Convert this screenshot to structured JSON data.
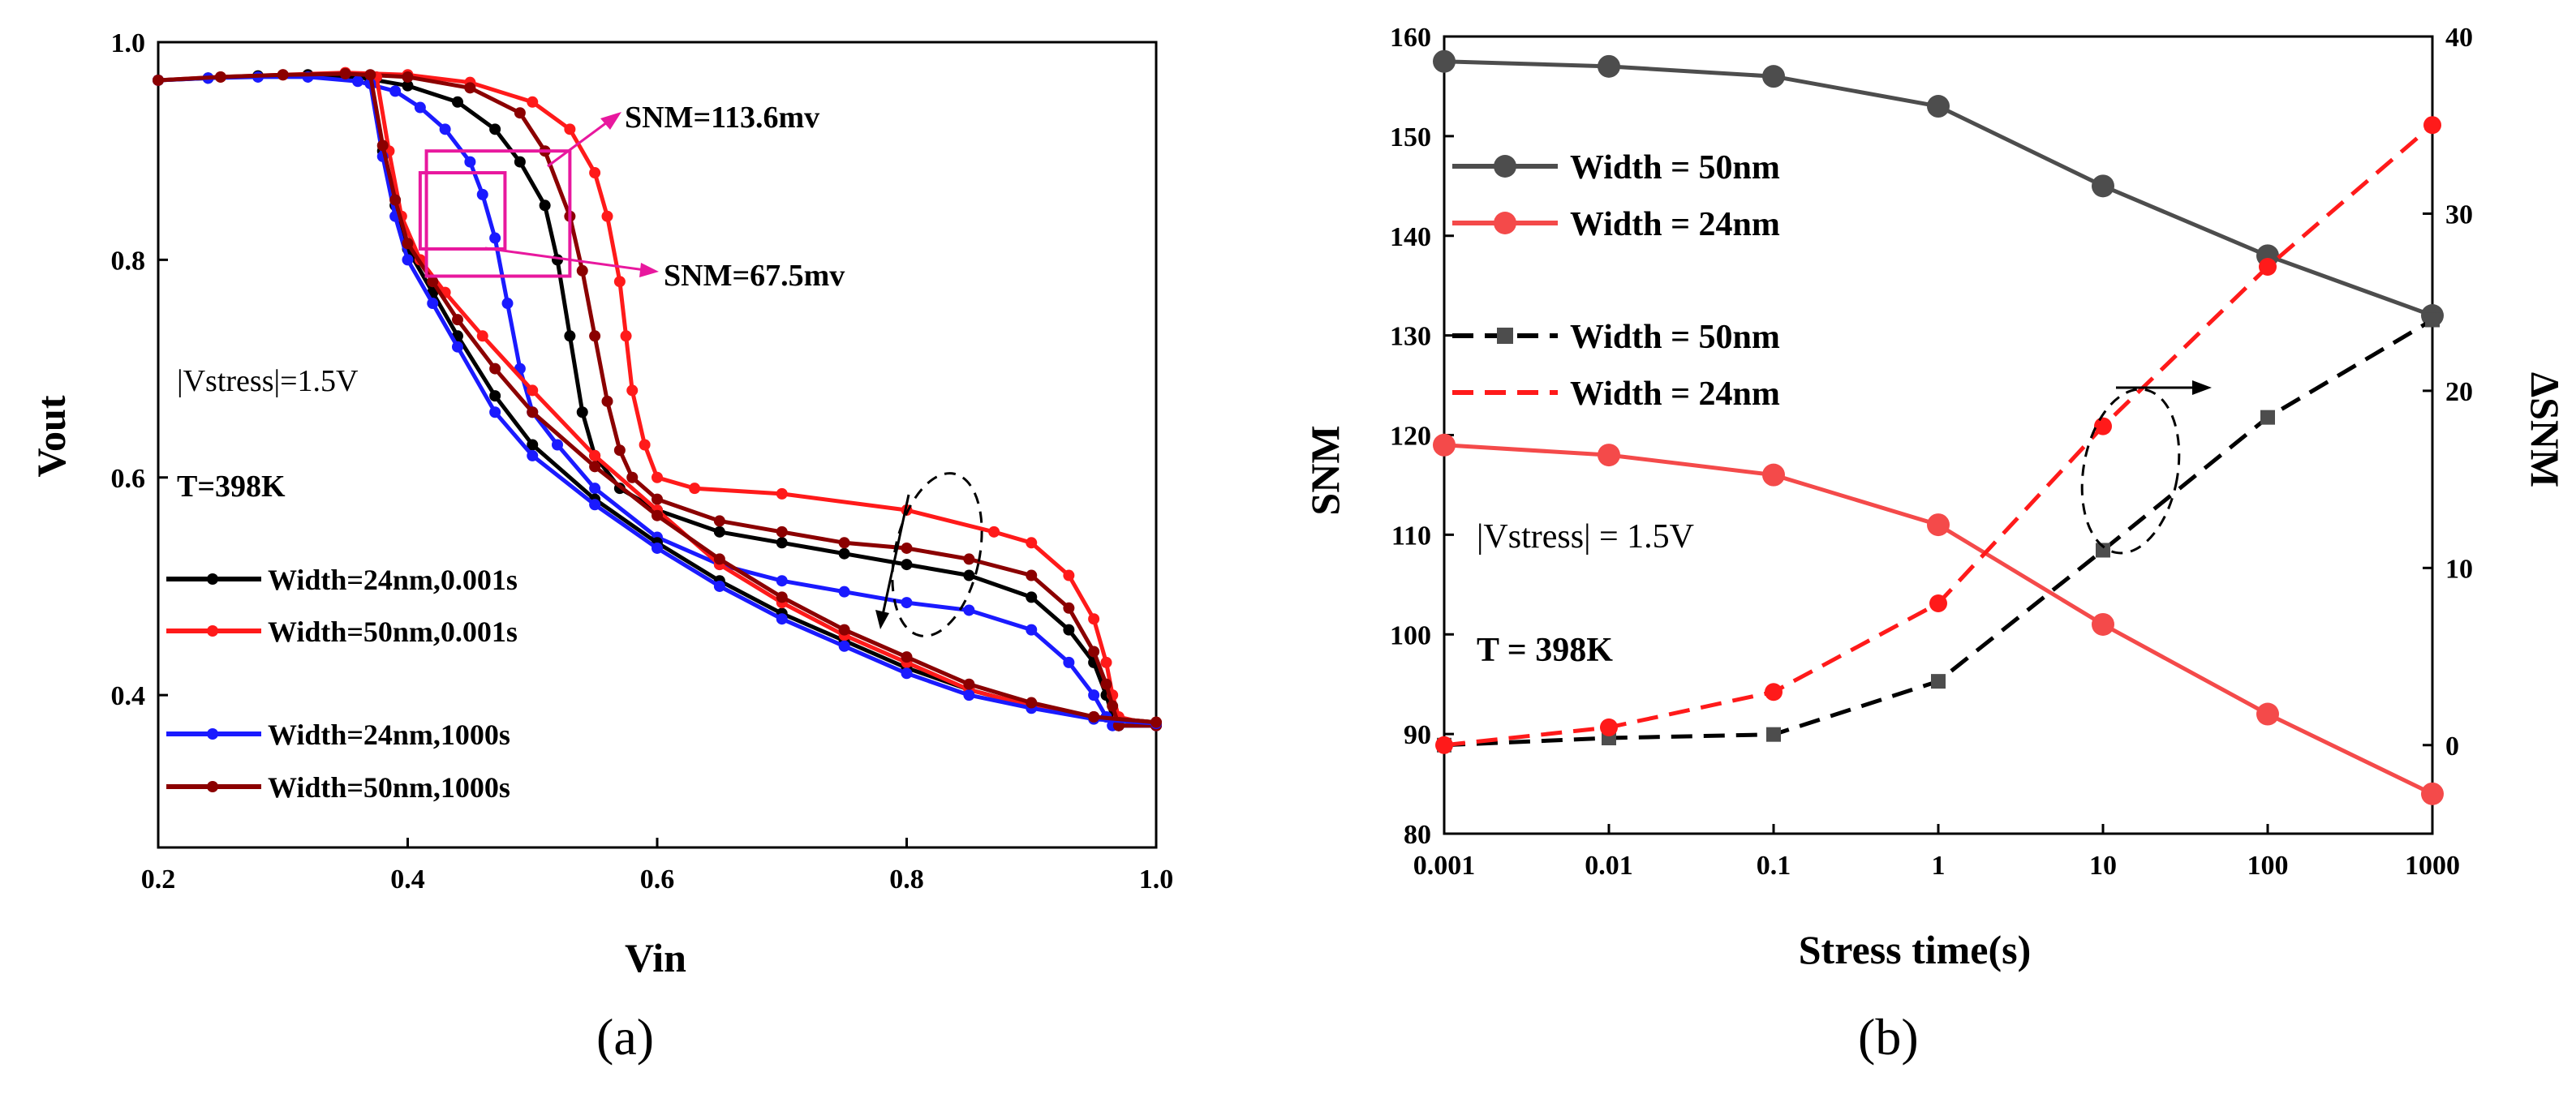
{
  "chart_data": [
    {
      "panel": "(a)",
      "type": "line",
      "xlabel": "Vin",
      "ylabel": "Vout",
      "xlim": [
        0.2,
        1.0
      ],
      "ylim": [
        0.26,
        1.0
      ],
      "xticks": [
        "0.2",
        "0.4",
        "0.6",
        "0.8",
        "1.0"
      ],
      "xtick_values": [
        0.2,
        0.4,
        0.6,
        0.8,
        1.0
      ],
      "yticks": [
        "0.4",
        "0.6",
        "0.8",
        "1.0"
      ],
      "ytick_values": [
        0.4,
        0.6,
        0.8,
        1.0
      ],
      "annotations": [
        "SNM=113.6mv",
        "SNM=67.5mv",
        "|Vstress|=1.5V",
        "T=398K"
      ],
      "legend_position": "bottom-left",
      "series": [
        {
          "name": "Width=24nm,0.001s",
          "color": "#000000",
          "x": [
            0.2,
            0.24,
            0.28,
            0.32,
            0.36,
            0.4,
            0.44,
            0.47,
            0.49,
            0.51,
            0.52,
            0.53,
            0.54,
            0.55,
            0.57,
            0.6,
            0.65,
            0.7,
            0.75,
            0.8,
            0.85,
            0.9,
            0.93,
            0.95,
            0.96,
            0.965,
            0.97,
            1.0
          ],
          "y": [
            0.965,
            0.967,
            0.969,
            0.97,
            0.968,
            0.96,
            0.945,
            0.92,
            0.89,
            0.85,
            0.8,
            0.73,
            0.66,
            0.62,
            0.59,
            0.57,
            0.55,
            0.54,
            0.53,
            0.52,
            0.51,
            0.49,
            0.46,
            0.43,
            0.4,
            0.38,
            0.372,
            0.372
          ]
        },
        {
          "name": "Width=50nm,0.001s",
          "color": "#ff1a1a",
          "x": [
            0.2,
            0.25,
            0.3,
            0.35,
            0.4,
            0.45,
            0.5,
            0.53,
            0.55,
            0.56,
            0.57,
            0.575,
            0.58,
            0.59,
            0.6,
            0.63,
            0.7,
            0.8,
            0.87,
            0.9,
            0.93,
            0.95,
            0.96,
            0.965,
            0.97,
            1.0
          ],
          "y": [
            0.965,
            0.968,
            0.97,
            0.972,
            0.97,
            0.963,
            0.945,
            0.92,
            0.88,
            0.84,
            0.78,
            0.73,
            0.68,
            0.63,
            0.6,
            0.59,
            0.585,
            0.57,
            0.55,
            0.54,
            0.51,
            0.47,
            0.43,
            0.4,
            0.38,
            0.372
          ]
        },
        {
          "name": "Width=24nm,1000s",
          "color": "#1a1aff",
          "x": [
            0.2,
            0.24,
            0.28,
            0.32,
            0.36,
            0.39,
            0.41,
            0.43,
            0.45,
            0.46,
            0.47,
            0.48,
            0.49,
            0.5,
            0.52,
            0.55,
            0.6,
            0.65,
            0.7,
            0.75,
            0.8,
            0.85,
            0.9,
            0.93,
            0.95,
            0.96,
            0.965,
            0.97,
            1.0
          ],
          "y": [
            0.965,
            0.967,
            0.968,
            0.968,
            0.964,
            0.955,
            0.94,
            0.92,
            0.89,
            0.86,
            0.82,
            0.76,
            0.7,
            0.66,
            0.63,
            0.59,
            0.545,
            0.52,
            0.505,
            0.495,
            0.485,
            0.478,
            0.46,
            0.43,
            0.4,
            0.38,
            0.372,
            0.372,
            0.372
          ]
        },
        {
          "name": "Width=50nm,1000s",
          "color": "#8b0000",
          "x": [
            0.2,
            0.25,
            0.3,
            0.35,
            0.4,
            0.45,
            0.49,
            0.51,
            0.53,
            0.54,
            0.55,
            0.56,
            0.57,
            0.58,
            0.6,
            0.65,
            0.7,
            0.75,
            0.8,
            0.85,
            0.9,
            0.93,
            0.95,
            0.96,
            0.965,
            0.97,
            1.0
          ],
          "y": [
            0.965,
            0.968,
            0.97,
            0.971,
            0.968,
            0.958,
            0.935,
            0.9,
            0.84,
            0.79,
            0.73,
            0.67,
            0.625,
            0.6,
            0.58,
            0.56,
            0.55,
            0.54,
            0.535,
            0.525,
            0.51,
            0.48,
            0.44,
            0.41,
            0.39,
            0.372,
            0.372
          ]
        },
        {
          "name": "",
          "color": "#000000",
          "x": [
            0.37,
            0.38,
            0.39,
            0.4,
            0.42,
            0.44,
            0.47,
            0.5,
            0.55,
            0.6,
            0.65,
            0.7,
            0.75,
            0.8,
            0.85,
            0.9,
            0.95,
            1.0
          ],
          "y": [
            0.965,
            0.9,
            0.85,
            0.81,
            0.77,
            0.73,
            0.675,
            0.63,
            0.58,
            0.54,
            0.505,
            0.475,
            0.45,
            0.425,
            0.405,
            0.39,
            0.38,
            0.375
          ]
        },
        {
          "name": "",
          "color": "#ff1a1a",
          "x": [
            0.375,
            0.385,
            0.395,
            0.41,
            0.43,
            0.46,
            0.5,
            0.55,
            0.6,
            0.65,
            0.7,
            0.75,
            0.8,
            0.85,
            0.9,
            0.95,
            1.0
          ],
          "y": [
            0.968,
            0.9,
            0.84,
            0.8,
            0.77,
            0.73,
            0.68,
            0.62,
            0.57,
            0.52,
            0.485,
            0.455,
            0.43,
            0.405,
            0.39,
            0.38,
            0.375
          ]
        },
        {
          "name": "",
          "color": "#1a1aff",
          "x": [
            0.37,
            0.38,
            0.39,
            0.4,
            0.42,
            0.44,
            0.47,
            0.5,
            0.55,
            0.6,
            0.65,
            0.7,
            0.75,
            0.8,
            0.85,
            0.9,
            0.95,
            1.0
          ],
          "y": [
            0.962,
            0.895,
            0.84,
            0.8,
            0.76,
            0.72,
            0.66,
            0.62,
            0.575,
            0.535,
            0.5,
            0.47,
            0.445,
            0.42,
            0.4,
            0.388,
            0.378,
            0.374
          ]
        },
        {
          "name": "",
          "color": "#8b0000",
          "x": [
            0.37,
            0.38,
            0.39,
            0.4,
            0.42,
            0.44,
            0.47,
            0.5,
            0.55,
            0.6,
            0.65,
            0.7,
            0.75,
            0.8,
            0.85,
            0.9,
            0.95,
            1.0
          ],
          "y": [
            0.97,
            0.905,
            0.855,
            0.815,
            0.78,
            0.745,
            0.7,
            0.66,
            0.61,
            0.565,
            0.525,
            0.49,
            0.46,
            0.435,
            0.41,
            0.393,
            0.38,
            0.375
          ]
        }
      ],
      "snm_boxes": [
        {
          "label": "SNM=113.6mv",
          "x": [
            0.415,
            0.53
          ],
          "y": [
            0.785,
            0.9
          ]
        },
        {
          "label": "SNM=67.5mv",
          "x": [
            0.41,
            0.478
          ],
          "y": [
            0.81,
            0.88
          ]
        }
      ]
    },
    {
      "panel": "(b)",
      "type": "line",
      "xlabel": "Stress time(s)",
      "ylabel": "SNM",
      "y2label": "ΔSNM",
      "xscale": "log",
      "categories": [
        "0.001",
        "0.01",
        "0.1",
        "1",
        "10",
        "100",
        "1000"
      ],
      "x": [
        0.001,
        0.01,
        0.1,
        1,
        10,
        100,
        1000
      ],
      "ylim": [
        80,
        160
      ],
      "yticks": [
        "80",
        "90",
        "100",
        "110",
        "120",
        "130",
        "140",
        "150",
        "160"
      ],
      "ytick_values": [
        80,
        90,
        100,
        110,
        120,
        130,
        140,
        150,
        160
      ],
      "y2lim": [
        -5,
        40
      ],
      "y2ticks": [
        "0",
        "10",
        "20",
        "30",
        "40"
      ],
      "y2tick_values": [
        0,
        10,
        20,
        30,
        40
      ],
      "annotations": [
        "|Vstress| = 1.5V",
        "T = 398K"
      ],
      "legend_position": "top-left",
      "series": [
        {
          "name": "Width = 50nm",
          "axis": "left",
          "style": "solid-circle",
          "color": "#4d4d4d",
          "values": [
            157.5,
            157,
            156,
            153,
            145,
            138,
            132
          ]
        },
        {
          "name": "Width = 24nm",
          "axis": "left",
          "style": "solid-circle",
          "color": "#f44a4a",
          "values": [
            119,
            118,
            116,
            111,
            101,
            92,
            84
          ]
        },
        {
          "name": "Width = 50nm",
          "axis": "right",
          "style": "dashed-square",
          "color": "#000000",
          "values": [
            0,
            0.4,
            0.6,
            3.6,
            11,
            18.5,
            24
          ]
        },
        {
          "name": "Width = 24nm",
          "axis": "right",
          "style": "dashed-circle",
          "color": "#ff1a1a",
          "values": [
            0,
            1,
            3,
            8,
            18,
            27,
            35
          ]
        }
      ]
    }
  ]
}
